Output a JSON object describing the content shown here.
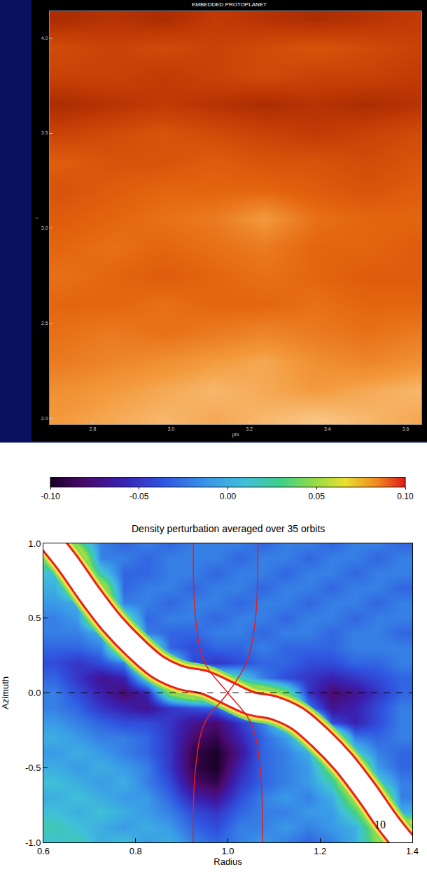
{
  "chart_data": [
    {
      "type": "heatmap",
      "title": "EMBEDDED PROTOPLANET",
      "x_label": "phi",
      "y_label": "r",
      "x": [
        2.72,
        2.85,
        2.98,
        3.11,
        3.24,
        3.37,
        3.5,
        3.63
      ],
      "y": [
        2.0,
        2.15,
        2.3,
        2.45,
        2.6,
        2.75,
        2.9,
        3.05,
        3.2,
        3.35,
        3.5,
        3.65,
        3.8,
        3.95,
        4.1
      ],
      "cells": [
        [
          0.75,
          0.8,
          0.85,
          0.8,
          0.85,
          0.9,
          0.85,
          0.8
        ],
        [
          0.7,
          0.75,
          0.8,
          0.85,
          0.8,
          0.75,
          0.8,
          0.85
        ],
        [
          0.6,
          0.65,
          0.7,
          0.75,
          0.8,
          0.7,
          0.65,
          0.7
        ],
        [
          0.55,
          0.6,
          0.55,
          0.6,
          0.65,
          0.6,
          0.55,
          0.6
        ],
        [
          0.5,
          0.5,
          0.55,
          0.5,
          0.5,
          0.55,
          0.5,
          0.5
        ],
        [
          0.55,
          0.5,
          0.45,
          0.5,
          0.55,
          0.5,
          0.45,
          0.45
        ],
        [
          0.5,
          0.55,
          0.5,
          0.55,
          0.6,
          0.5,
          0.5,
          0.45
        ],
        [
          0.45,
          0.5,
          0.55,
          0.6,
          0.75,
          0.55,
          0.5,
          0.5
        ],
        [
          0.4,
          0.45,
          0.5,
          0.5,
          0.5,
          0.45,
          0.4,
          0.45
        ],
        [
          0.45,
          0.4,
          0.4,
          0.45,
          0.4,
          0.4,
          0.35,
          0.4
        ],
        [
          0.3,
          0.35,
          0.4,
          0.35,
          0.3,
          0.25,
          0.3,
          0.35
        ],
        [
          0.15,
          0.2,
          0.25,
          0.2,
          0.15,
          0.2,
          0.15,
          0.2
        ],
        [
          0.3,
          0.3,
          0.25,
          0.3,
          0.35,
          0.3,
          0.3,
          0.25
        ],
        [
          0.35,
          0.3,
          0.35,
          0.3,
          0.35,
          0.4,
          0.35,
          0.3
        ],
        [
          0.15,
          0.2,
          0.15,
          0.25,
          0.2,
          0.15,
          0.2,
          0.25
        ]
      ],
      "zlim": [
        0,
        1
      ],
      "xlim": [
        2.69,
        3.64
      ],
      "ylim": [
        1.97,
        4.14
      ],
      "xticks": [
        2.8,
        {
          "value": 3,
          "label": "3.0"
        },
        3.2,
        3.4,
        3.6
      ],
      "yticks": [
        {
          "value": 2,
          "label": "2.0"
        },
        2.5,
        {
          "value": 3,
          "label": "3.0"
        },
        3.5,
        {
          "value": 4,
          "label": "4.0"
        }
      ]
    },
    {
      "type": "heatmap",
      "title": "Density perturbation averaged over 35 orbits",
      "x_label": "Radius",
      "y_label": "Azimuth",
      "x": [
        0.625,
        0.675,
        0.725,
        0.775,
        0.825,
        0.875,
        0.925,
        0.975,
        1.025,
        1.075,
        1.125,
        1.175,
        1.225,
        1.275,
        1.325,
        1.375
      ],
      "y": [
        -1.0,
        -0.9,
        -0.8,
        -0.7,
        -0.6,
        -0.5,
        -0.4,
        -0.3,
        -0.2,
        -0.1,
        0.0,
        0.1,
        0.2,
        0.3,
        0.4,
        0.5,
        0.6,
        0.7,
        0.8,
        0.9,
        1.0
      ],
      "cells": [
        [
          0.01,
          0.02,
          0.0,
          0.01,
          -0.01,
          0.0,
          -0.02,
          -0.03,
          -0.02,
          -0.01,
          -0.02,
          -0.03,
          -0.02,
          0.0,
          0.05,
          0.1
        ],
        [
          0.02,
          0.01,
          0.0,
          -0.01,
          0.0,
          -0.01,
          -0.03,
          -0.04,
          -0.02,
          -0.02,
          -0.01,
          -0.02,
          -0.01,
          0.0,
          0.06,
          0.1
        ],
        [
          0.01,
          0.0,
          0.01,
          0.0,
          -0.01,
          -0.02,
          -0.04,
          -0.05,
          -0.03,
          -0.02,
          -0.02,
          -0.01,
          -0.01,
          0.03,
          0.1,
          0.0
        ],
        [
          0.0,
          0.01,
          0.0,
          -0.01,
          -0.01,
          -0.03,
          -0.06,
          -0.07,
          -0.04,
          -0.02,
          -0.01,
          -0.02,
          0.0,
          0.06,
          0.1,
          -0.02
        ],
        [
          0.01,
          0.0,
          -0.01,
          0.0,
          -0.02,
          -0.04,
          -0.08,
          -0.09,
          -0.05,
          -0.03,
          -0.02,
          -0.01,
          0.02,
          0.1,
          0.02,
          -0.02
        ],
        [
          0.0,
          -0.01,
          0.0,
          -0.01,
          -0.02,
          -0.05,
          -0.09,
          -0.1,
          -0.06,
          -0.03,
          -0.02,
          -0.01,
          0.05,
          0.1,
          -0.01,
          -0.03
        ],
        [
          -0.01,
          0.0,
          -0.01,
          -0.02,
          -0.03,
          -0.05,
          -0.09,
          -0.1,
          -0.07,
          -0.03,
          -0.02,
          0.0,
          0.1,
          0.02,
          -0.02,
          -0.03
        ],
        [
          0.0,
          -0.01,
          -0.02,
          -0.02,
          -0.03,
          -0.05,
          -0.08,
          -0.09,
          -0.06,
          -0.03,
          -0.01,
          0.04,
          0.1,
          -0.02,
          -0.03,
          -0.02
        ],
        [
          -0.01,
          -0.02,
          -0.03,
          -0.04,
          -0.04,
          -0.05,
          -0.07,
          -0.08,
          -0.05,
          -0.02,
          0.03,
          0.1,
          -0.04,
          -0.06,
          -0.04,
          -0.02
        ],
        [
          -0.02,
          -0.03,
          -0.05,
          -0.06,
          -0.07,
          -0.05,
          -0.04,
          -0.03,
          0.02,
          0.1,
          0.1,
          -0.02,
          -0.07,
          -0.06,
          -0.04,
          -0.02
        ],
        [
          -0.02,
          -0.04,
          -0.06,
          -0.08,
          -0.06,
          0.05,
          0.1,
          0.1,
          0.1,
          0.1,
          0.05,
          -0.05,
          -0.08,
          -0.07,
          -0.05,
          -0.03
        ],
        [
          -0.03,
          -0.05,
          -0.07,
          -0.06,
          0.02,
          0.1,
          0.1,
          0.05,
          0.02,
          -0.02,
          -0.04,
          -0.05,
          -0.06,
          -0.05,
          -0.04,
          -0.03
        ],
        [
          -0.04,
          -0.05,
          -0.04,
          -0.02,
          0.1,
          0.03,
          -0.04,
          -0.05,
          -0.04,
          -0.03,
          -0.03,
          -0.04,
          -0.04,
          -0.03,
          -0.03,
          -0.02
        ],
        [
          -0.03,
          -0.03,
          -0.02,
          0.08,
          0.06,
          -0.03,
          -0.04,
          -0.03,
          -0.03,
          -0.02,
          -0.03,
          -0.03,
          -0.03,
          -0.02,
          -0.02,
          -0.02
        ],
        [
          -0.02,
          -0.02,
          0.0,
          0.1,
          -0.02,
          -0.03,
          -0.03,
          -0.02,
          -0.02,
          -0.03,
          -0.02,
          -0.02,
          -0.03,
          -0.02,
          -0.02,
          -0.03
        ],
        [
          -0.02,
          -0.01,
          0.1,
          0.04,
          -0.03,
          -0.02,
          -0.02,
          -0.03,
          -0.02,
          -0.02,
          -0.03,
          -0.02,
          -0.02,
          -0.03,
          -0.02,
          -0.02
        ],
        [
          -0.01,
          0.0,
          0.1,
          -0.02,
          -0.02,
          -0.03,
          -0.02,
          -0.02,
          -0.03,
          -0.02,
          -0.02,
          -0.03,
          -0.02,
          -0.02,
          -0.03,
          -0.02
        ],
        [
          0.0,
          0.06,
          0.08,
          -0.03,
          -0.02,
          -0.02,
          -0.03,
          -0.02,
          -0.02,
          -0.03,
          -0.02,
          -0.02,
          -0.03,
          -0.02,
          -0.02,
          -0.03
        ],
        [
          0.01,
          0.1,
          0.02,
          -0.03,
          -0.03,
          -0.02,
          -0.02,
          -0.03,
          -0.02,
          -0.02,
          -0.03,
          -0.02,
          -0.02,
          -0.03,
          -0.02,
          -0.02
        ],
        [
          0.05,
          0.1,
          -0.02,
          -0.02,
          -0.03,
          -0.02,
          -0.02,
          -0.02,
          -0.03,
          -0.02,
          -0.02,
          -0.03,
          -0.02,
          -0.02,
          -0.03,
          -0.02
        ],
        [
          0.1,
          0.04,
          -0.02,
          -0.03,
          -0.02,
          -0.03,
          -0.02,
          -0.02,
          -0.02,
          -0.03,
          -0.02,
          -0.02,
          -0.03,
          -0.02,
          -0.02,
          -0.03
        ]
      ],
      "zlim": [
        -0.1,
        0.1
      ],
      "zticks": [
        {
          "value": -0.1,
          "label": "-0.10"
        },
        -0.05,
        {
          "value": 0,
          "label": "0.00"
        },
        0.05,
        {
          "value": 0.1,
          "label": "0.10"
        }
      ],
      "xlim": [
        0.6,
        1.4
      ],
      "ylim": [
        -1.0,
        1.0
      ],
      "xticks": [
        0.6,
        0.8,
        {
          "value": 1,
          "label": "1.0"
        },
        1.2,
        1.4
      ],
      "yticks": [
        {
          "value": -1,
          "label": "-1.0"
        },
        -0.5,
        {
          "value": 0,
          "label": "0.0"
        },
        0.5,
        {
          "value": 1,
          "label": "1.0"
        }
      ],
      "wake": {
        "radius": [
          0.6,
          0.65,
          0.7,
          0.75,
          0.8,
          0.85,
          0.9,
          0.95,
          1.0,
          1.05,
          1.1,
          1.15,
          1.2,
          1.25,
          1.3,
          1.35,
          1.4
        ],
        "azimuth": [
          1.07,
          0.88,
          0.66,
          0.46,
          0.3,
          0.17,
          0.1,
          0.07,
          0.0,
          -0.07,
          -0.1,
          -0.17,
          -0.3,
          -0.46,
          -0.66,
          -0.88,
          -1.07
        ]
      },
      "separatrix": [
        {
          "radius": [
            0.925,
            0.93,
            0.95,
            1.0,
            1.05,
            1.07,
            1.075
          ],
          "azimuth": [
            1.0,
            0.5,
            0.2,
            0.0,
            -0.2,
            -0.5,
            -1.0
          ]
        },
        {
          "radius": [
            1.065,
            1.06,
            1.04,
            1.0,
            0.95,
            0.93,
            0.925
          ],
          "azimuth": [
            1.0,
            0.5,
            0.2,
            0.0,
            -0.2,
            -0.5,
            -1.0
          ]
        }
      ],
      "reference_azimuth": 0,
      "annotations": [
        {
          "text": "10",
          "x": 1.33,
          "y": -0.88
        }
      ]
    }
  ]
}
